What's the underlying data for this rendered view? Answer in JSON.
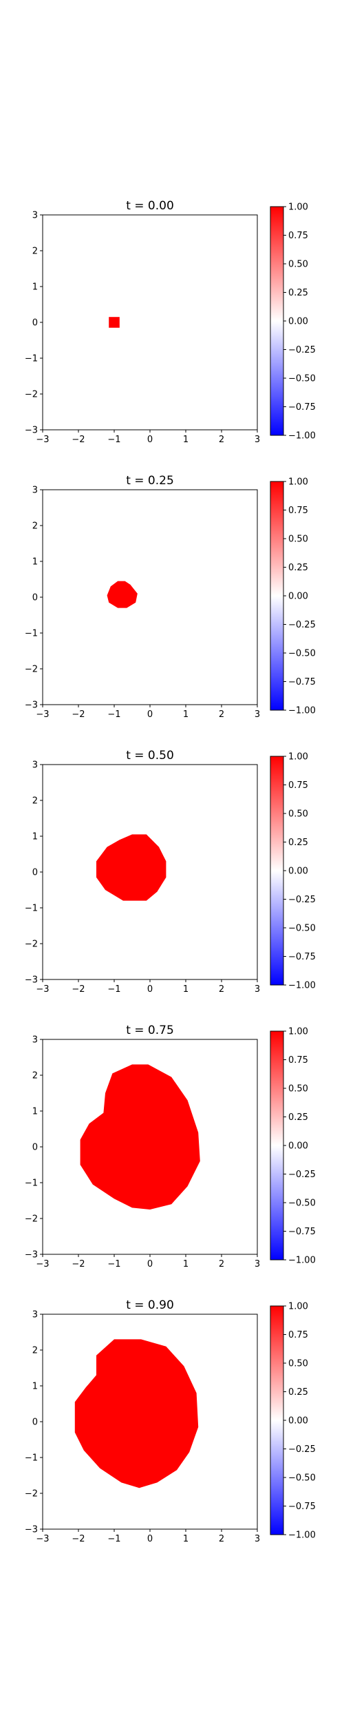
{
  "figure": {
    "background": "#ffffff"
  },
  "colormap": {
    "name": "bwr",
    "low_color": "#0000ff",
    "mid_color": "#ffffff",
    "high_color": "#ff0000"
  },
  "chart_data": [
    {
      "type": "heatmap",
      "title": "t = 0.00",
      "xlim": [
        -3,
        3
      ],
      "ylim": [
        -3,
        3
      ],
      "xticks": [
        -3,
        -2,
        -1,
        0,
        1,
        2,
        3
      ],
      "yticks": [
        -3,
        -2,
        -1,
        0,
        1,
        2,
        3
      ],
      "tick_labels": [
        "−3",
        "−2",
        "−1",
        "0",
        "1",
        "2",
        "3"
      ],
      "value_inside": 1.0,
      "value_outside": 0.0,
      "region_boundary": [
        [
          -1.15,
          0.15
        ],
        [
          -0.85,
          0.15
        ],
        [
          -0.85,
          -0.15
        ],
        [
          -1.15,
          -0.15
        ]
      ],
      "colorbar": {
        "range": [
          -1.0,
          1.0
        ],
        "ticks": [
          1.0,
          0.75,
          0.5,
          0.25,
          0.0,
          -0.25,
          -0.5,
          -0.75,
          -1.0
        ],
        "tick_labels": [
          "1.00",
          "0.75",
          "0.50",
          "0.25",
          "0.00",
          "−0.25",
          "−0.50",
          "−0.75",
          "−1.00"
        ]
      }
    },
    {
      "type": "heatmap",
      "title": "t = 0.25",
      "xlim": [
        -3,
        3
      ],
      "ylim": [
        -3,
        3
      ],
      "xticks": [
        -3,
        -2,
        -1,
        0,
        1,
        2,
        3
      ],
      "yticks": [
        -3,
        -2,
        -1,
        0,
        1,
        2,
        3
      ],
      "tick_labels": [
        "−3",
        "−2",
        "−1",
        "0",
        "1",
        "2",
        "3"
      ],
      "value_inside": 1.0,
      "value_outside": 0.0,
      "region_boundary": [
        [
          -0.9,
          0.45
        ],
        [
          -0.7,
          0.45
        ],
        [
          -0.55,
          0.35
        ],
        [
          -0.35,
          0.1
        ],
        [
          -0.4,
          -0.15
        ],
        [
          -0.65,
          -0.3
        ],
        [
          -0.9,
          -0.3
        ],
        [
          -1.15,
          -0.15
        ],
        [
          -1.2,
          0.05
        ],
        [
          -1.1,
          0.3
        ]
      ],
      "colorbar": {
        "range": [
          -1.0,
          1.0
        ],
        "ticks": [
          1.0,
          0.75,
          0.5,
          0.25,
          0.0,
          -0.25,
          -0.5,
          -0.75,
          -1.0
        ],
        "tick_labels": [
          "1.00",
          "0.75",
          "0.50",
          "0.25",
          "0.00",
          "−0.25",
          "−0.50",
          "−0.75",
          "−1.00"
        ]
      }
    },
    {
      "type": "heatmap",
      "title": "t = 0.50",
      "xlim": [
        -3,
        3
      ],
      "ylim": [
        -3,
        3
      ],
      "xticks": [
        -3,
        -2,
        -1,
        0,
        1,
        2,
        3
      ],
      "yticks": [
        -3,
        -2,
        -1,
        0,
        1,
        2,
        3
      ],
      "tick_labels": [
        "−3",
        "−2",
        "−1",
        "0",
        "1",
        "2",
        "3"
      ],
      "value_inside": 1.0,
      "value_outside": 0.0,
      "region_boundary": [
        [
          -0.5,
          1.05
        ],
        [
          -0.1,
          1.05
        ],
        [
          0.25,
          0.7
        ],
        [
          0.45,
          0.3
        ],
        [
          0.45,
          -0.15
        ],
        [
          0.2,
          -0.55
        ],
        [
          -0.1,
          -0.8
        ],
        [
          -0.75,
          -0.8
        ],
        [
          -1.25,
          -0.5
        ],
        [
          -1.5,
          -0.15
        ],
        [
          -1.5,
          0.3
        ],
        [
          -1.2,
          0.7
        ],
        [
          -0.85,
          0.9
        ]
      ],
      "colorbar": {
        "range": [
          -1.0,
          1.0
        ],
        "ticks": [
          1.0,
          0.75,
          0.5,
          0.25,
          0.0,
          -0.25,
          -0.5,
          -0.75,
          -1.0
        ],
        "tick_labels": [
          "1.00",
          "0.75",
          "0.50",
          "0.25",
          "0.00",
          "−0.25",
          "−0.50",
          "−0.75",
          "−1.00"
        ]
      }
    },
    {
      "type": "heatmap",
      "title": "t = 0.75",
      "xlim": [
        -3,
        3
      ],
      "ylim": [
        -3,
        3
      ],
      "xticks": [
        -3,
        -2,
        -1,
        0,
        1,
        2,
        3
      ],
      "yticks": [
        -3,
        -2,
        -1,
        0,
        1,
        2,
        3
      ],
      "tick_labels": [
        "−3",
        "−2",
        "−1",
        "0",
        "1",
        "2",
        "3"
      ],
      "value_inside": 1.0,
      "value_outside": 0.0,
      "region_boundary": [
        [
          -0.5,
          2.3
        ],
        [
          -0.05,
          2.3
        ],
        [
          0.6,
          1.95
        ],
        [
          1.05,
          1.3
        ],
        [
          1.35,
          0.4
        ],
        [
          1.4,
          -0.4
        ],
        [
          1.05,
          -1.1
        ],
        [
          0.6,
          -1.6
        ],
        [
          0.0,
          -1.75
        ],
        [
          -0.5,
          -1.7
        ],
        [
          -1.0,
          -1.45
        ],
        [
          -1.6,
          -1.05
        ],
        [
          -1.95,
          -0.5
        ],
        [
          -1.95,
          0.2
        ],
        [
          -1.7,
          0.65
        ],
        [
          -1.3,
          0.95
        ],
        [
          -1.25,
          1.5
        ],
        [
          -1.05,
          2.05
        ]
      ],
      "colorbar": {
        "range": [
          -1.0,
          1.0
        ],
        "ticks": [
          1.0,
          0.75,
          0.5,
          0.25,
          0.0,
          -0.25,
          -0.5,
          -0.75,
          -1.0
        ],
        "tick_labels": [
          "1.00",
          "0.75",
          "0.50",
          "0.25",
          "0.00",
          "−0.25",
          "−0.50",
          "−0.75",
          "−1.00"
        ]
      }
    },
    {
      "type": "heatmap",
      "title": "t = 0.90",
      "xlim": [
        -3,
        3
      ],
      "ylim": [
        -3,
        3
      ],
      "xticks": [
        -3,
        -2,
        -1,
        0,
        1,
        2,
        3
      ],
      "yticks": [
        -3,
        -2,
        -1,
        0,
        1,
        2,
        3
      ],
      "tick_labels": [
        "−3",
        "−2",
        "−1",
        "0",
        "1",
        "2",
        "3"
      ],
      "value_inside": 1.0,
      "value_outside": 0.0,
      "region_boundary": [
        [
          -1.0,
          2.3
        ],
        [
          -0.25,
          2.3
        ],
        [
          0.45,
          2.1
        ],
        [
          0.95,
          1.55
        ],
        [
          1.3,
          0.8
        ],
        [
          1.35,
          -0.15
        ],
        [
          1.1,
          -0.85
        ],
        [
          0.75,
          -1.35
        ],
        [
          0.2,
          -1.7
        ],
        [
          -0.3,
          -1.85
        ],
        [
          -0.8,
          -1.7
        ],
        [
          -1.4,
          -1.3
        ],
        [
          -1.85,
          -0.8
        ],
        [
          -2.1,
          -0.3
        ],
        [
          -2.1,
          0.55
        ],
        [
          -1.8,
          0.95
        ],
        [
          -1.5,
          1.3
        ],
        [
          -1.5,
          1.85
        ]
      ],
      "colorbar": {
        "range": [
          -1.0,
          1.0
        ],
        "ticks": [
          1.0,
          0.75,
          0.5,
          0.25,
          0.0,
          -0.25,
          -0.5,
          -0.75,
          -1.0
        ],
        "tick_labels": [
          "1.00",
          "0.75",
          "0.50",
          "0.25",
          "0.00",
          "−0.25",
          "−0.50",
          "−0.75",
          "−1.00"
        ]
      }
    }
  ]
}
